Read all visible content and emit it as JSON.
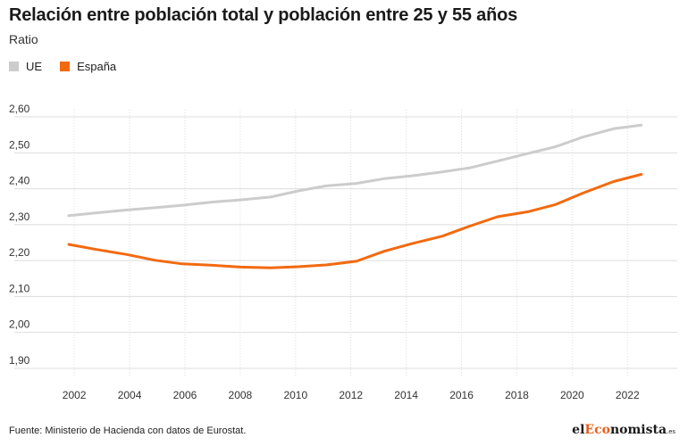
{
  "header": {
    "title": "Relación entre población total y población entre 25 y 55 años",
    "subtitle": "Ratio"
  },
  "colors": {
    "ue": "#cccccc",
    "espana": "#f26a10",
    "grid": "#dddddd"
  },
  "footer": {
    "source": "Fuente: Ministerio de Hacienda con datos de Eurostat.",
    "brand_prefix": "el",
    "brand_highlight": "Eco",
    "brand_suffix": "nomista",
    "brand_tld": ".es"
  },
  "chart_data": {
    "type": "line",
    "title": "Relación entre población total y población entre 25 y 55 años",
    "ylabel": "Ratio",
    "xlabel": "",
    "xlim": [
      2000.8,
      2023.8
    ],
    "ylim": [
      1.88,
      2.62
    ],
    "yticks": [
      1.9,
      2.0,
      2.1,
      2.2,
      2.3,
      2.4,
      2.5,
      2.6
    ],
    "ytick_labels": [
      "1,90",
      "2,00",
      "2,10",
      "2,20",
      "2,30",
      "2,40",
      "2,50",
      "2,60"
    ],
    "xticks": [
      2002,
      2004,
      2006,
      2008,
      2010,
      2012,
      2014,
      2016,
      2018,
      2020,
      2022
    ],
    "xtick_labels": [
      "2002",
      "2004",
      "2006",
      "2008",
      "2010",
      "2012",
      "2014",
      "2016",
      "2018",
      "2020",
      "2022"
    ],
    "x": [
      2001.8,
      2002.8,
      2003.9,
      2004.9,
      2005.9,
      2007.0,
      2008.0,
      2009.1,
      2010.1,
      2011.1,
      2012.2,
      2013.2,
      2014.2,
      2015.3,
      2016.3,
      2017.3,
      2018.4,
      2019.4,
      2020.4,
      2021.5,
      2022.5
    ],
    "legend_position": "top-left",
    "grid": true,
    "series": [
      {
        "name": "UE",
        "values": [
          2.325,
          2.333,
          2.341,
          2.347,
          2.354,
          2.363,
          2.369,
          2.377,
          2.394,
          2.408,
          2.415,
          2.428,
          2.436,
          2.447,
          2.458,
          2.477,
          2.498,
          2.517,
          2.544,
          2.567,
          2.577
        ]
      },
      {
        "name": "España",
        "values": [
          2.245,
          2.231,
          2.217,
          2.201,
          2.191,
          2.187,
          2.182,
          2.18,
          2.183,
          2.188,
          2.198,
          2.226,
          2.247,
          2.268,
          2.296,
          2.322,
          2.336,
          2.356,
          2.388,
          2.42,
          2.44
        ]
      }
    ]
  }
}
